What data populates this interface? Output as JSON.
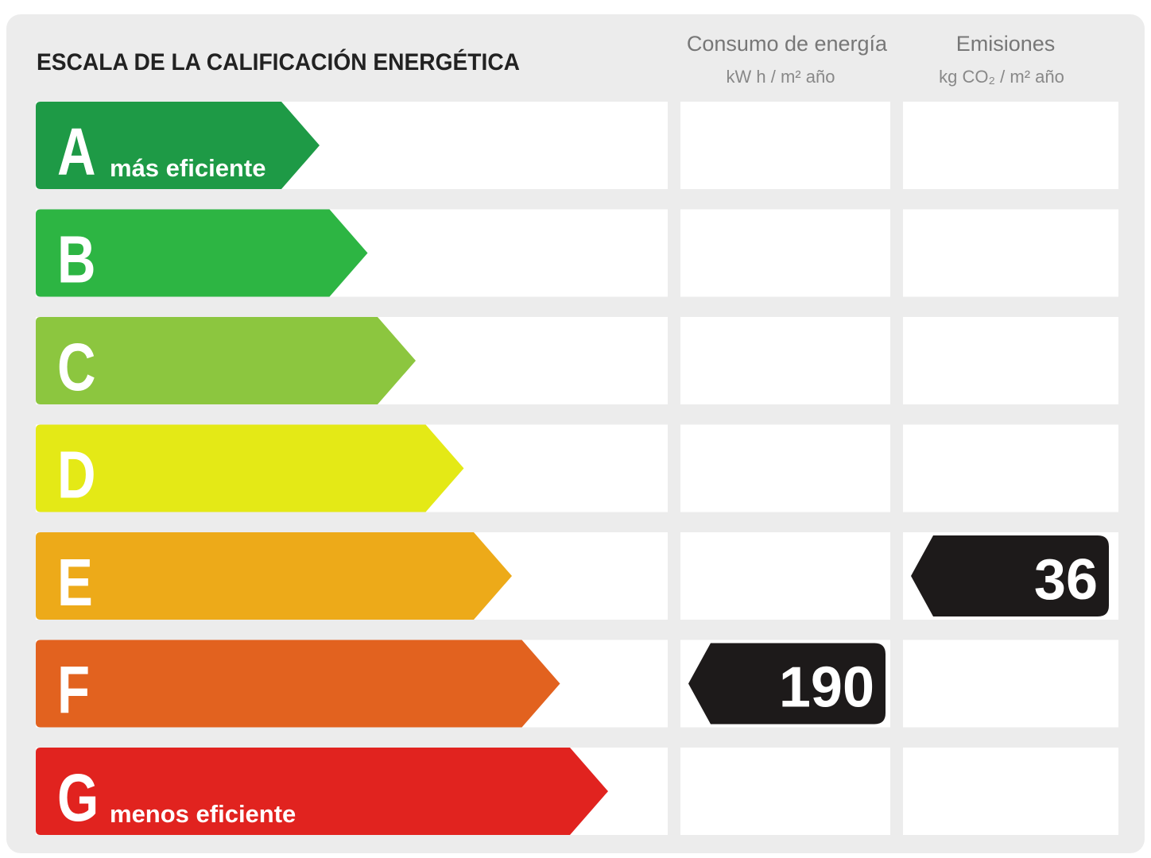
{
  "header": {
    "title": "ESCALA DE LA CALIFICACIÓN ENERGÉTICA",
    "columns": [
      {
        "title": "Consumo de energía",
        "unit": "kW h / m² año"
      },
      {
        "title": "Emisiones",
        "unit": "kg CO₂ / m² año"
      }
    ]
  },
  "rows": [
    {
      "letter": "A",
      "note": "más eficiente",
      "color": "#1e9a46"
    },
    {
      "letter": "B",
      "color": "#2db543"
    },
    {
      "letter": "C",
      "color": "#8cc63f"
    },
    {
      "letter": "D",
      "color": "#e4e916"
    },
    {
      "letter": "E",
      "color": "#edaa19",
      "emissions": 36
    },
    {
      "letter": "F",
      "color": "#e2621f",
      "consumption": 190
    },
    {
      "letter": "G",
      "note": "menos eficiente",
      "color": "#e1231f"
    }
  ]
}
